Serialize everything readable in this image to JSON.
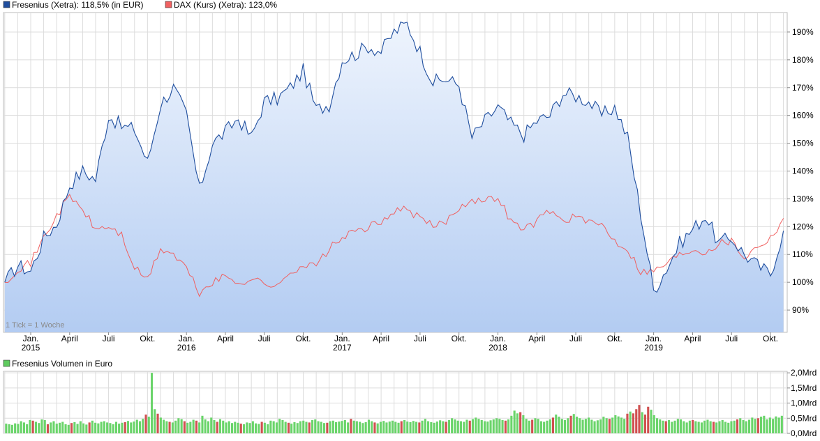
{
  "legend": {
    "main": [
      {
        "label": "Fresenius (Xetra): 118,5% (in EUR)",
        "color": "#1f4e9e"
      },
      {
        "label": "DAX (Kurs) (Xetra): 123,0%",
        "color": "#f06060"
      }
    ],
    "volume": {
      "label": "Fresenius Volumen in Euro",
      "color": "#5ecb5e"
    }
  },
  "note": "1 Tick = 1 Woche",
  "colors": {
    "fresenius_line": "#1f4e9e",
    "dax_line": "#f06060",
    "area_top": "#eef4fd",
    "area_bottom": "#b3ccf2",
    "grid": "#dcdcdc",
    "volume_up": "#6ad46a",
    "volume_down": "#d05050"
  },
  "chart_data": [
    {
      "type": "line",
      "x_labels": [
        {
          "date": "2015-01",
          "month": "Jan.",
          "year": "2015"
        },
        {
          "date": "2015-04",
          "month": "April",
          "year": ""
        },
        {
          "date": "2015-07",
          "month": "Juli",
          "year": ""
        },
        {
          "date": "2015-10",
          "month": "Okt.",
          "year": ""
        },
        {
          "date": "2016-01",
          "month": "Jan.",
          "year": "2016"
        },
        {
          "date": "2016-04",
          "month": "April",
          "year": ""
        },
        {
          "date": "2016-07",
          "month": "Juli",
          "year": ""
        },
        {
          "date": "2016-10",
          "month": "Okt.",
          "year": ""
        },
        {
          "date": "2017-01",
          "month": "Jan.",
          "year": "2017"
        },
        {
          "date": "2017-04",
          "month": "April",
          "year": ""
        },
        {
          "date": "2017-07",
          "month": "Juli",
          "year": ""
        },
        {
          "date": "2017-10",
          "month": "Okt.",
          "year": ""
        },
        {
          "date": "2018-01",
          "month": "Jan.",
          "year": "2018"
        },
        {
          "date": "2018-04",
          "month": "April",
          "year": ""
        },
        {
          "date": "2018-07",
          "month": "Juli",
          "year": ""
        },
        {
          "date": "2018-10",
          "month": "Okt.",
          "year": ""
        },
        {
          "date": "2019-01",
          "month": "Jan.",
          "year": "2019"
        },
        {
          "date": "2019-04",
          "month": "April",
          "year": ""
        },
        {
          "date": "2019-07",
          "month": "Juli",
          "year": ""
        },
        {
          "date": "2019-10",
          "month": "Okt.",
          "year": ""
        }
      ],
      "y_ticks": [
        "90%",
        "100%",
        "110%",
        "120%",
        "130%",
        "140%",
        "150%",
        "160%",
        "170%",
        "180%",
        "190%"
      ],
      "y_tick_values": [
        90,
        100,
        110,
        120,
        130,
        140,
        150,
        160,
        170,
        180,
        190
      ],
      "ylim": [
        82,
        197
      ],
      "series": [
        {
          "name": "Fresenius (Xetra): 118,5% (in EUR)",
          "points": [
            [
              "2014-11",
              100
            ],
            [
              "2014-12",
              106
            ],
            [
              "2015-01",
              104
            ],
            [
              "2015-02",
              116
            ],
            [
              "2015-03",
              121
            ],
            [
              "2015-04",
              135
            ],
            [
              "2015-05",
              140
            ],
            [
              "2015-06",
              137
            ],
            [
              "2015-07",
              160
            ],
            [
              "2015-08",
              156
            ],
            [
              "2015-09",
              155
            ],
            [
              "2015-10",
              143
            ],
            [
              "2015-11",
              164
            ],
            [
              "2015-12",
              170
            ],
            [
              "2016-01",
              160
            ],
            [
              "2016-02",
              133
            ],
            [
              "2016-03",
              150
            ],
            [
              "2016-04",
              154
            ],
            [
              "2016-05",
              159
            ],
            [
              "2016-06",
              152
            ],
            [
              "2016-07",
              165
            ],
            [
              "2016-08",
              166
            ],
            [
              "2016-09",
              170
            ],
            [
              "2016-10",
              176
            ],
            [
              "2016-11",
              162
            ],
            [
              "2016-12",
              164
            ],
            [
              "2017-01",
              180
            ],
            [
              "2017-02",
              182
            ],
            [
              "2017-03",
              185
            ],
            [
              "2017-04",
              183
            ],
            [
              "2017-05",
              190
            ],
            [
              "2017-06",
              193
            ],
            [
              "2017-07",
              183
            ],
            [
              "2017-08",
              172
            ],
            [
              "2017-09",
              173
            ],
            [
              "2017-10",
              171
            ],
            [
              "2017-11",
              152
            ],
            [
              "2017-12",
              158
            ],
            [
              "2018-01",
              163
            ],
            [
              "2018-02",
              157
            ],
            [
              "2018-03",
              153
            ],
            [
              "2018-04",
              158
            ],
            [
              "2018-05",
              160
            ],
            [
              "2018-06",
              168
            ],
            [
              "2018-07",
              167
            ],
            [
              "2018-08",
              165
            ],
            [
              "2018-09",
              160
            ],
            [
              "2018-10",
              163
            ],
            [
              "2018-11",
              152
            ],
            [
              "2018-12",
              125
            ],
            [
              "2019-01",
              97
            ],
            [
              "2019-02",
              105
            ],
            [
              "2019-03",
              114
            ],
            [
              "2019-04",
              119
            ],
            [
              "2019-05",
              124
            ],
            [
              "2019-06",
              114
            ],
            [
              "2019-07",
              116
            ],
            [
              "2019-08",
              110
            ],
            [
              "2019-09",
              106
            ],
            [
              "2019-10",
              103
            ],
            [
              "2019-11",
              118.5
            ]
          ]
        },
        {
          "name": "DAX (Kurs) (Xetra): 123,0%",
          "points": [
            [
              "2014-11",
              100
            ],
            [
              "2014-12",
              105
            ],
            [
              "2015-01",
              107
            ],
            [
              "2015-02",
              116
            ],
            [
              "2015-03",
              124
            ],
            [
              "2015-04",
              131
            ],
            [
              "2015-05",
              126
            ],
            [
              "2015-06",
              119
            ],
            [
              "2015-07",
              120
            ],
            [
              "2015-08",
              117
            ],
            [
              "2015-09",
              105
            ],
            [
              "2015-10",
              101
            ],
            [
              "2015-11",
              112
            ],
            [
              "2015-12",
              110
            ],
            [
              "2016-01",
              105
            ],
            [
              "2016-02",
              96
            ],
            [
              "2016-03",
              100
            ],
            [
              "2016-04",
              102
            ],
            [
              "2016-05",
              100
            ],
            [
              "2016-06",
              101
            ],
            [
              "2016-07",
              100
            ],
            [
              "2016-08",
              98
            ],
            [
              "2016-09",
              104
            ],
            [
              "2016-10",
              106
            ],
            [
              "2016-11",
              106
            ],
            [
              "2016-12",
              112
            ],
            [
              "2017-01",
              116
            ],
            [
              "2017-02",
              118
            ],
            [
              "2017-03",
              120
            ],
            [
              "2017-04",
              121
            ],
            [
              "2017-05",
              126
            ],
            [
              "2017-06",
              126
            ],
            [
              "2017-07",
              123
            ],
            [
              "2017-08",
              120
            ],
            [
              "2017-09",
              122
            ],
            [
              "2017-10",
              127
            ],
            [
              "2017-11",
              130
            ],
            [
              "2017-12",
              129
            ],
            [
              "2018-01",
              131
            ],
            [
              "2018-02",
              122
            ],
            [
              "2018-03",
              119
            ],
            [
              "2018-04",
              122
            ],
            [
              "2018-05",
              126
            ],
            [
              "2018-06",
              122
            ],
            [
              "2018-07",
              124
            ],
            [
              "2018-08",
              121
            ],
            [
              "2018-09",
              121
            ],
            [
              "2018-10",
              115
            ],
            [
              "2018-11",
              112
            ],
            [
              "2018-12",
              104
            ],
            [
              "2019-01",
              104
            ],
            [
              "2019-02",
              107
            ],
            [
              "2019-03",
              110
            ],
            [
              "2019-04",
              112
            ],
            [
              "2019-05",
              111
            ],
            [
              "2019-06",
              114
            ],
            [
              "2019-07",
              115
            ],
            [
              "2019-08",
              109
            ],
            [
              "2019-09",
              113
            ],
            [
              "2019-10",
              116
            ],
            [
              "2019-11",
              123
            ]
          ]
        }
      ]
    },
    {
      "type": "bar",
      "title": "Fresenius Volumen in Euro",
      "y_ticks": [
        "0,0Mrd",
        "0,5Mrd",
        "1,0Mrd",
        "1,5Mrd",
        "2,0Mrd"
      ],
      "y_tick_values": [
        0,
        0.5,
        1.0,
        1.5,
        2.0
      ],
      "ylim": [
        0,
        2.05
      ],
      "x_range": [
        "2014-11",
        "2019-11"
      ],
      "bar_count": 262,
      "values": [
        0.32,
        0.3,
        0.28,
        0.33,
        0.31,
        0.4,
        0.36,
        0.3,
        0.44,
        0.42,
        0.38,
        0.34,
        0.46,
        0.44,
        0.3,
        0.36,
        0.4,
        0.32,
        0.35,
        0.38,
        0.3,
        0.28,
        0.34,
        0.37,
        0.31,
        0.4,
        0.33,
        0.29,
        0.36,
        0.42,
        0.35,
        0.33,
        0.38,
        0.4,
        0.36,
        0.34,
        0.3,
        0.38,
        0.32,
        0.35,
        0.37,
        0.41,
        0.36,
        0.39,
        0.45,
        0.4,
        0.48,
        0.62,
        0.55,
        2.0,
        0.8,
        0.65,
        0.52,
        0.45,
        0.4,
        0.38,
        0.36,
        0.42,
        0.5,
        0.47,
        0.4,
        0.35,
        0.38,
        0.45,
        0.42,
        0.36,
        0.58,
        0.46,
        0.4,
        0.52,
        0.44,
        0.38,
        0.47,
        0.42,
        0.36,
        0.4,
        0.34,
        0.38,
        0.35,
        0.32,
        0.3,
        0.36,
        0.34,
        0.4,
        0.33,
        0.31,
        0.38,
        0.35,
        0.3,
        0.42,
        0.4,
        0.36,
        0.48,
        0.44,
        0.38,
        0.35,
        0.32,
        0.37,
        0.34,
        0.4,
        0.42,
        0.38,
        0.36,
        0.44,
        0.46,
        0.4,
        0.38,
        0.34,
        0.35,
        0.4,
        0.42,
        0.37,
        0.39,
        0.41,
        0.44,
        0.36,
        0.48,
        0.42,
        0.4,
        0.38,
        0.34,
        0.37,
        0.45,
        0.4,
        0.36,
        0.33,
        0.38,
        0.41,
        0.36,
        0.39,
        0.42,
        0.38,
        0.35,
        0.4,
        0.44,
        0.39,
        0.37,
        0.41,
        0.38,
        0.36,
        0.42,
        0.48,
        0.4,
        0.37,
        0.35,
        0.39,
        0.43,
        0.4,
        0.38,
        0.44,
        0.5,
        0.46,
        0.42,
        0.4,
        0.38,
        0.45,
        0.42,
        0.47,
        0.52,
        0.48,
        0.44,
        0.4,
        0.39,
        0.43,
        0.46,
        0.5,
        0.48,
        0.44,
        0.42,
        0.46,
        0.58,
        0.75,
        0.66,
        0.7,
        0.6,
        0.48,
        0.42,
        0.45,
        0.5,
        0.48,
        0.4,
        0.38,
        0.42,
        0.46,
        0.52,
        0.62,
        0.55,
        0.48,
        0.44,
        0.5,
        0.58,
        0.64,
        0.55,
        0.5,
        0.45,
        0.48,
        0.52,
        0.45,
        0.4,
        0.43,
        0.46,
        0.55,
        0.5,
        0.48,
        0.52,
        0.6,
        0.56,
        0.52,
        0.48,
        0.65,
        0.72,
        0.66,
        0.8,
        0.94,
        0.7,
        0.62,
        0.88,
        0.78,
        0.6,
        0.5,
        0.46,
        0.42,
        0.4,
        0.44,
        0.38,
        0.42,
        0.48,
        0.46,
        0.4,
        0.36,
        0.42,
        0.44,
        0.4,
        0.38,
        0.36,
        0.42,
        0.45,
        0.4,
        0.38,
        0.36,
        0.4,
        0.44,
        0.38,
        0.35,
        0.4,
        0.42,
        0.46,
        0.5,
        0.44,
        0.4,
        0.45,
        0.52,
        0.48,
        0.5,
        0.55,
        0.58,
        0.46,
        0.52,
        0.48,
        0.56,
        0.52,
        0.58
      ],
      "down_weeks": [
        9,
        14,
        22,
        28,
        40,
        47,
        51,
        55,
        60,
        64,
        71,
        79,
        86,
        95,
        102,
        108,
        116,
        124,
        133,
        139,
        148,
        156,
        168,
        173,
        177,
        184,
        190,
        203,
        209,
        211,
        212,
        213,
        215,
        216,
        222,
        231,
        238,
        246,
        253
      ]
    }
  ]
}
